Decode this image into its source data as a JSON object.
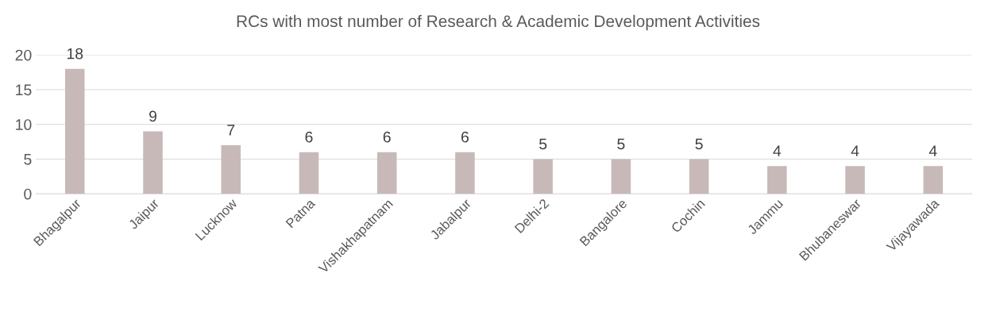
{
  "chart_data": {
    "type": "bar",
    "title": "RCs with most number of Research & Academic Development Activities",
    "categories": [
      "Bhagalpur",
      "Jaipur",
      "Lucknow",
      "Patna",
      "Vishakhapatnam",
      "Jabalpur",
      "Delhi-2",
      "Bangalore",
      "Cochin",
      "Jammu",
      "Bhubaneswar",
      "Vijayawada"
    ],
    "values": [
      18,
      9,
      7,
      6,
      6,
      6,
      5,
      5,
      5,
      4,
      4,
      4
    ],
    "color": "#c8b9b9",
    "ylim": [
      0,
      20
    ],
    "yticks": [
      0,
      5,
      10,
      15,
      20
    ],
    "grid": "y",
    "data_labels": true
  }
}
